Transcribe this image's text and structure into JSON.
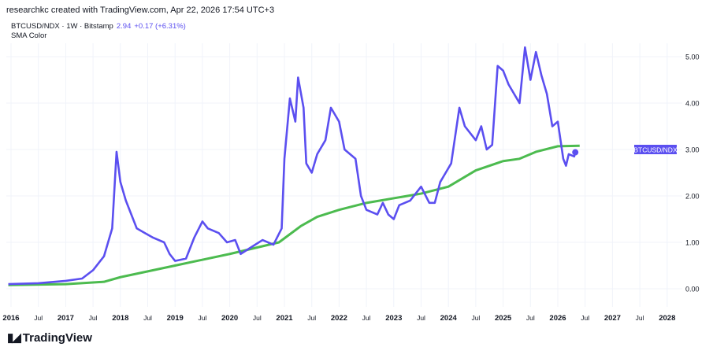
{
  "header": {
    "attribution": "researchkc created with TradingView.com, Apr 22, 2026 17:54 UTC+3"
  },
  "legend": {
    "symbol": "BTCUSD/NDX · 1W · Bitstamp",
    "last": "2.94",
    "change": "+0.17 (+6.31%)",
    "indicator": "SMA Color"
  },
  "logo": {
    "text": "TradingView"
  },
  "colors": {
    "price": "#5b4ff0",
    "sma": "#4cbb4f",
    "label_bg": "#5b4ff0"
  },
  "chart_data": {
    "type": "line",
    "title": "BTCUSD/NDX · 1W · Bitstamp",
    "price_label": "BTCUSD/NDX",
    "ylim": [
      -0.15,
      5.4
    ],
    "xlim": [
      2015.95,
      2028.3
    ],
    "y_ticks": [
      "0.00",
      "1.00",
      "2.00",
      "3.00",
      "4.00",
      "5.00"
    ],
    "x_ticks": [
      {
        "x": 2016,
        "label": "2016"
      },
      {
        "x": 2016.5,
        "label": "Jul"
      },
      {
        "x": 2017,
        "label": "2017"
      },
      {
        "x": 2017.5,
        "label": "Jul"
      },
      {
        "x": 2018,
        "label": "2018"
      },
      {
        "x": 2018.5,
        "label": "Jul"
      },
      {
        "x": 2019,
        "label": "2019"
      },
      {
        "x": 2019.5,
        "label": "Jul"
      },
      {
        "x": 2020,
        "label": "2020"
      },
      {
        "x": 2020.5,
        "label": "Jul"
      },
      {
        "x": 2021,
        "label": "2021"
      },
      {
        "x": 2021.5,
        "label": "Jul"
      },
      {
        "x": 2022,
        "label": "2022"
      },
      {
        "x": 2022.5,
        "label": "Jul"
      },
      {
        "x": 2023,
        "label": "2023"
      },
      {
        "x": 2023.5,
        "label": "Jul"
      },
      {
        "x": 2024,
        "label": "2024"
      },
      {
        "x": 2024.5,
        "label": "Jul"
      },
      {
        "x": 2025,
        "label": "2025"
      },
      {
        "x": 2025.5,
        "label": "Jul"
      },
      {
        "x": 2026,
        "label": "2026"
      },
      {
        "x": 2026.5,
        "label": "Jul"
      },
      {
        "x": 2027,
        "label": "2027"
      },
      {
        "x": 2027.5,
        "label": "Jul"
      },
      {
        "x": 2028,
        "label": "2028"
      }
    ],
    "series": [
      {
        "name": "BTCUSD/NDX",
        "points": [
          [
            2015.95,
            0.1
          ],
          [
            2016.5,
            0.12
          ],
          [
            2017.0,
            0.17
          ],
          [
            2017.3,
            0.22
          ],
          [
            2017.5,
            0.4
          ],
          [
            2017.7,
            0.7
          ],
          [
            2017.85,
            1.3
          ],
          [
            2017.93,
            2.95
          ],
          [
            2018.0,
            2.3
          ],
          [
            2018.1,
            1.9
          ],
          [
            2018.2,
            1.6
          ],
          [
            2018.3,
            1.3
          ],
          [
            2018.45,
            1.2
          ],
          [
            2018.6,
            1.1
          ],
          [
            2018.8,
            1.0
          ],
          [
            2018.9,
            0.75
          ],
          [
            2019.0,
            0.6
          ],
          [
            2019.2,
            0.65
          ],
          [
            2019.35,
            1.1
          ],
          [
            2019.5,
            1.45
          ],
          [
            2019.6,
            1.3
          ],
          [
            2019.8,
            1.2
          ],
          [
            2019.95,
            1.0
          ],
          [
            2020.1,
            1.05
          ],
          [
            2020.2,
            0.75
          ],
          [
            2020.4,
            0.9
          ],
          [
            2020.6,
            1.05
          ],
          [
            2020.8,
            0.95
          ],
          [
            2020.95,
            1.3
          ],
          [
            2021.0,
            2.8
          ],
          [
            2021.1,
            4.1
          ],
          [
            2021.2,
            3.6
          ],
          [
            2021.25,
            4.55
          ],
          [
            2021.35,
            3.9
          ],
          [
            2021.4,
            2.7
          ],
          [
            2021.5,
            2.5
          ],
          [
            2021.6,
            2.9
          ],
          [
            2021.75,
            3.2
          ],
          [
            2021.85,
            3.9
          ],
          [
            2022.0,
            3.6
          ],
          [
            2022.1,
            3.0
          ],
          [
            2022.3,
            2.8
          ],
          [
            2022.4,
            2.0
          ],
          [
            2022.5,
            1.7
          ],
          [
            2022.7,
            1.6
          ],
          [
            2022.8,
            1.85
          ],
          [
            2022.9,
            1.6
          ],
          [
            2023.0,
            1.5
          ],
          [
            2023.1,
            1.8
          ],
          [
            2023.3,
            1.9
          ],
          [
            2023.5,
            2.2
          ],
          [
            2023.65,
            1.85
          ],
          [
            2023.75,
            1.85
          ],
          [
            2023.85,
            2.3
          ],
          [
            2023.95,
            2.5
          ],
          [
            2024.05,
            2.7
          ],
          [
            2024.2,
            3.9
          ],
          [
            2024.3,
            3.5
          ],
          [
            2024.5,
            3.2
          ],
          [
            2024.6,
            3.5
          ],
          [
            2024.7,
            3.0
          ],
          [
            2024.8,
            3.1
          ],
          [
            2024.9,
            4.8
          ],
          [
            2025.0,
            4.7
          ],
          [
            2025.1,
            4.4
          ],
          [
            2025.3,
            4.0
          ],
          [
            2025.4,
            5.2
          ],
          [
            2025.5,
            4.5
          ],
          [
            2025.6,
            5.1
          ],
          [
            2025.7,
            4.6
          ],
          [
            2025.8,
            4.2
          ],
          [
            2025.9,
            3.5
          ],
          [
            2026.0,
            3.6
          ],
          [
            2026.1,
            2.8
          ],
          [
            2026.15,
            2.65
          ],
          [
            2026.2,
            2.9
          ],
          [
            2026.3,
            2.85
          ],
          [
            2026.32,
            2.94
          ]
        ]
      },
      {
        "name": "SMA",
        "points": [
          [
            2015.95,
            0.08
          ],
          [
            2017.0,
            0.1
          ],
          [
            2017.7,
            0.15
          ],
          [
            2018.0,
            0.25
          ],
          [
            2019.0,
            0.5
          ],
          [
            2020.0,
            0.75
          ],
          [
            2020.9,
            1.0
          ],
          [
            2021.3,
            1.35
          ],
          [
            2021.6,
            1.55
          ],
          [
            2022.0,
            1.7
          ],
          [
            2022.5,
            1.85
          ],
          [
            2023.0,
            1.95
          ],
          [
            2023.5,
            2.05
          ],
          [
            2024.0,
            2.2
          ],
          [
            2024.5,
            2.55
          ],
          [
            2025.0,
            2.75
          ],
          [
            2025.3,
            2.8
          ],
          [
            2025.6,
            2.95
          ],
          [
            2026.0,
            3.07
          ],
          [
            2026.4,
            3.08
          ]
        ]
      }
    ]
  }
}
